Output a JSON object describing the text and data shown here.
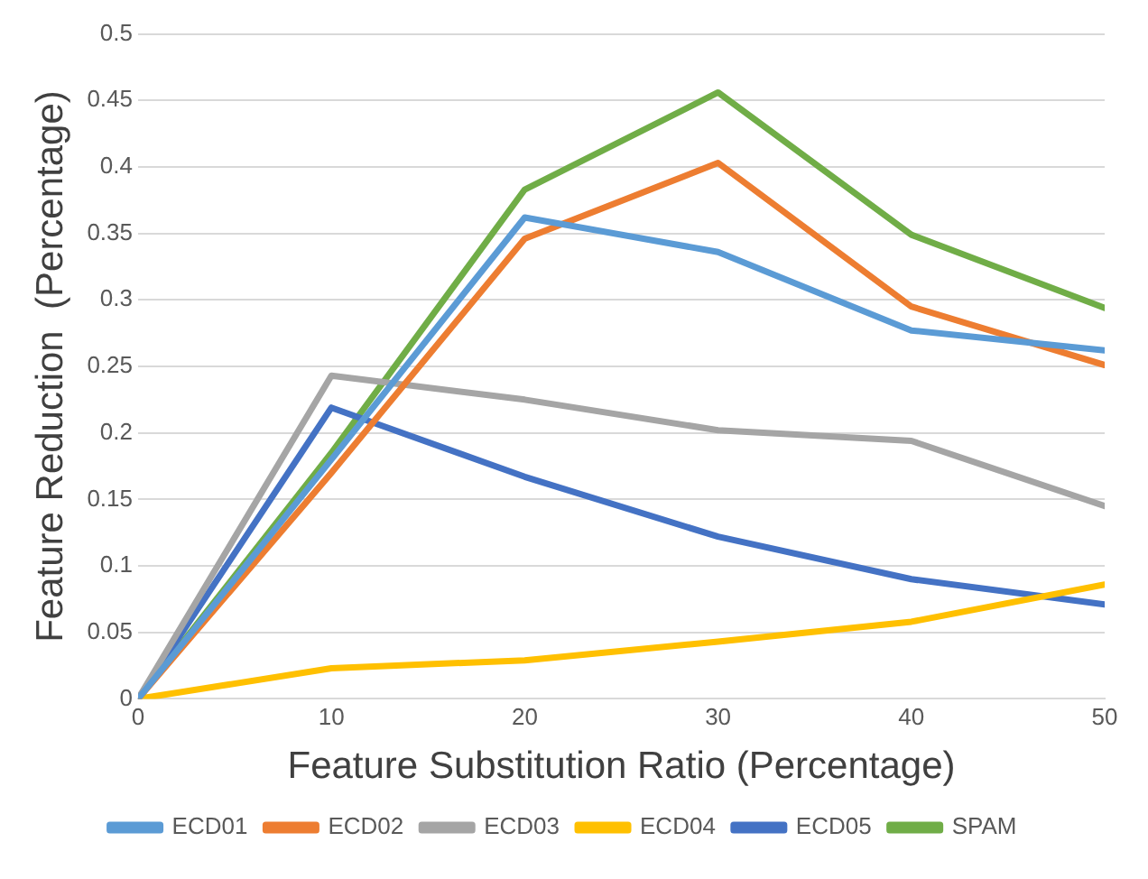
{
  "chart_data": {
    "type": "line",
    "xlabel": "Feature Substitution Ratio (Percentage)",
    "ylabel": "Feature Reduction  (Percentage)",
    "x": [
      0,
      10,
      20,
      30,
      40,
      50
    ],
    "series": [
      {
        "name": "ECD01",
        "color": "#5b9bd5",
        "values": [
          0,
          0.18,
          0.362,
          0.336,
          0.277,
          0.262
        ]
      },
      {
        "name": "ECD02",
        "color": "#ed7d31",
        "values": [
          0,
          0.17,
          0.346,
          0.403,
          0.295,
          0.251
        ]
      },
      {
        "name": "ECD03",
        "color": "#a5a5a5",
        "values": [
          0,
          0.243,
          0.225,
          0.202,
          0.194,
          0.145
        ]
      },
      {
        "name": "ECD04",
        "color": "#ffc000",
        "values": [
          0,
          0.023,
          0.029,
          0.043,
          0.058,
          0.086
        ]
      },
      {
        "name": "ECD05",
        "color": "#4472c4",
        "values": [
          0,
          0.219,
          0.167,
          0.122,
          0.09,
          0.071
        ]
      },
      {
        "name": "SPAM",
        "color": "#70ad47",
        "values": [
          0,
          0.185,
          0.383,
          0.456,
          0.349,
          0.294
        ]
      }
    ],
    "xlim": [
      0,
      50
    ],
    "xticks": [
      0,
      10,
      20,
      30,
      40,
      50
    ],
    "ylim": [
      0,
      0.5
    ],
    "yticks": [
      0,
      0.05,
      0.1,
      0.15,
      0.2,
      0.25,
      0.3,
      0.35,
      0.4,
      0.45,
      0.5
    ],
    "grid": "y",
    "legend": "bottom",
    "marker": "none",
    "line_style": "solid"
  }
}
